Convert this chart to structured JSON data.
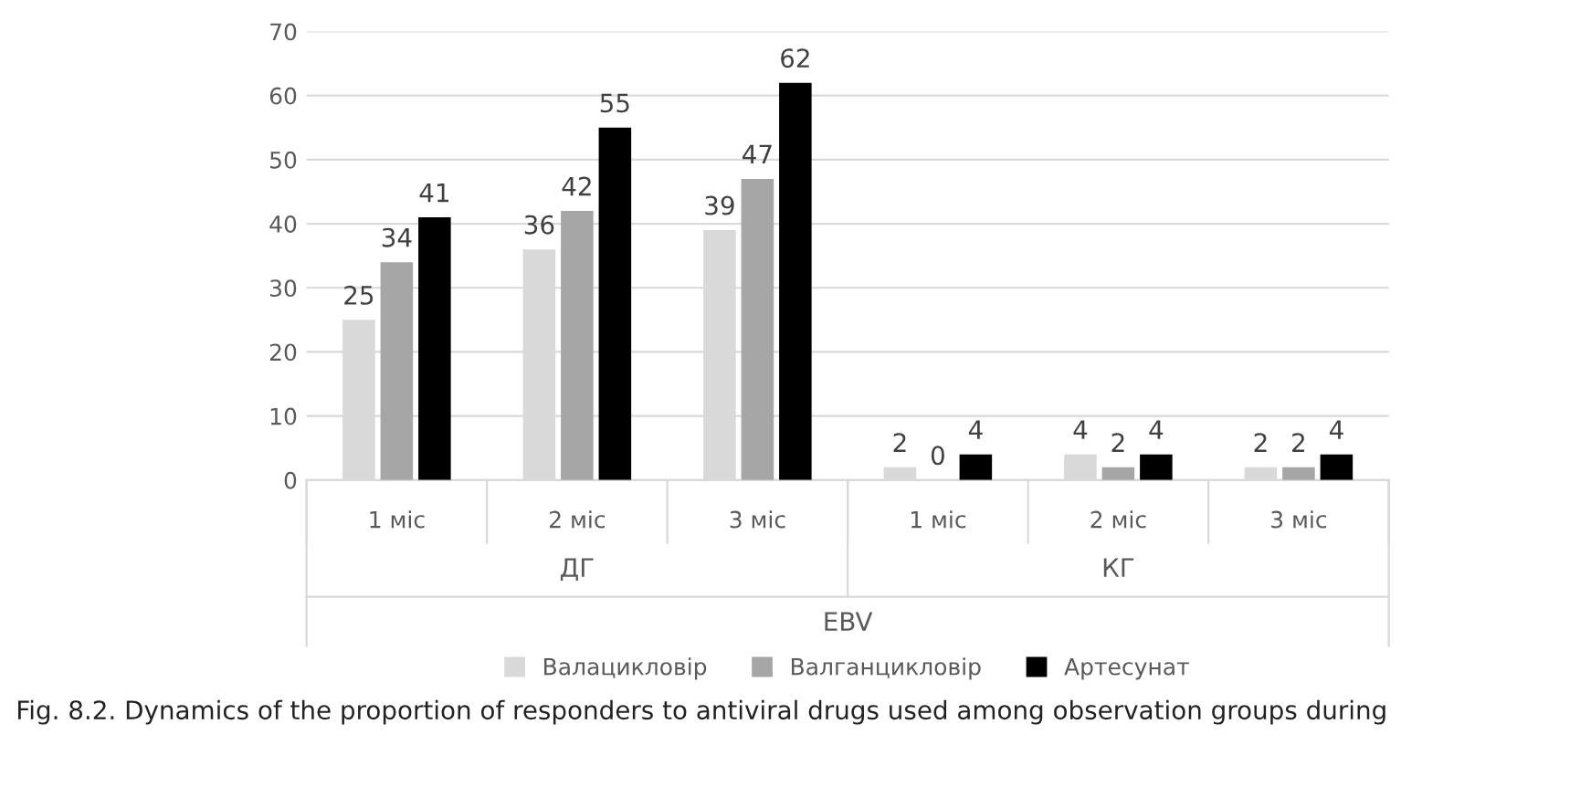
{
  "chart_data": {
    "type": "bar",
    "categories": [
      "1 міс",
      "2 міс",
      "3 міс",
      "1 міс",
      "2 міс",
      "3 міс"
    ],
    "series": [
      {
        "name": "Валацикловір",
        "color": "#d9d9d9",
        "values": [
          25,
          36,
          39,
          2,
          4,
          2
        ]
      },
      {
        "name": "Валганцикловір",
        "color": "#a6a6a6",
        "values": [
          34,
          42,
          47,
          0,
          2,
          2
        ]
      },
      {
        "name": "Артесунат",
        "color": "#000000",
        "values": [
          41,
          55,
          62,
          4,
          4,
          4
        ]
      }
    ],
    "ylim": [
      0,
      70
    ],
    "yticks": [
      0,
      10,
      20,
      30,
      40,
      50,
      60,
      70
    ],
    "grid": "y",
    "legend": "bottom",
    "data_labels": true,
    "annotations": [
      "ДГ",
      "КГ",
      "EBV",
      "Fig. 8.2. Dynamics of the proportion of responders to antiviral drugs used among observation groups during"
    ]
  }
}
